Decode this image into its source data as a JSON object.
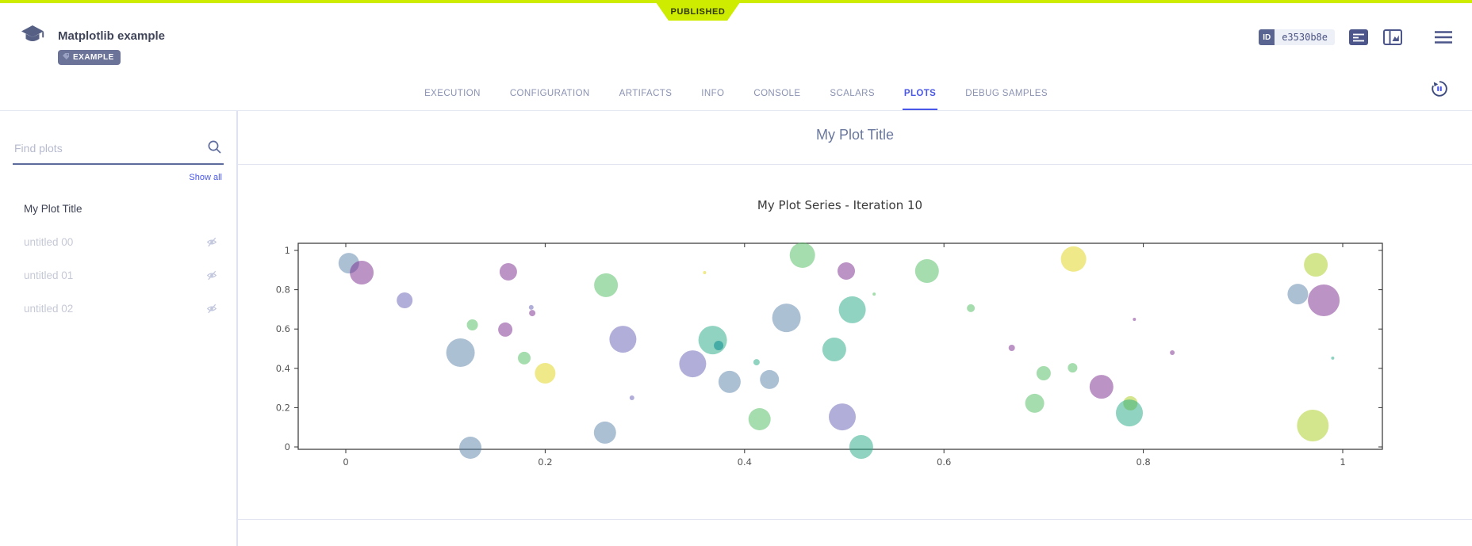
{
  "header": {
    "ribbon_label": "PUBLISHED",
    "ribbon_color": "#cdec00",
    "title": "Matplotlib example",
    "tag_label": "EXAMPLE",
    "id_label": "ID",
    "id_value": "e3530b8e",
    "icons": [
      "app-logo-icon",
      "tag-icon",
      "details-icon",
      "viewer-panel-icon",
      "menu-icon"
    ]
  },
  "tabs": {
    "items": [
      "EXECUTION",
      "CONFIGURATION",
      "ARTIFACTS",
      "INFO",
      "CONSOLE",
      "SCALARS",
      "PLOTS",
      "DEBUG SAMPLES"
    ],
    "active": "PLOTS",
    "active_color": "#4957e8",
    "refresh_icon": "auto-refresh-pause-icon"
  },
  "sidebar": {
    "search_placeholder": "Find plots",
    "search_value": "",
    "show_all": "Show all",
    "items": [
      {
        "label": "My Plot Title",
        "active": true,
        "hidden": false
      },
      {
        "label": "untitled 00",
        "active": false,
        "hidden": true
      },
      {
        "label": "untitled 01",
        "active": false,
        "hidden": true
      },
      {
        "label": "untitled 02",
        "active": false,
        "hidden": true
      }
    ]
  },
  "main": {
    "section_title": "My Plot Title"
  },
  "chart_data": {
    "type": "scatter",
    "title": "My Plot Series - Iteration 10",
    "xlabel": "",
    "ylabel": "",
    "xlim": [
      -0.05,
      1.04
    ],
    "ylim": [
      -0.02,
      1.04
    ],
    "xticks": [
      0,
      0.2,
      0.4,
      0.6,
      0.8,
      1
    ],
    "yticks": [
      0,
      0.2,
      0.4,
      0.6,
      0.8,
      1
    ],
    "grid": false,
    "legend": "none",
    "colors": {
      "blue": "rgba(90,130,170,0.5)",
      "purple": "rgba(120,40,140,0.5)",
      "lavender": "rgba(100,95,180,0.5)",
      "green": "rgba(85,190,100,0.52)",
      "teal": "rgba(40,170,135,0.52)",
      "tealdark": "rgba(30,150,150,0.65)",
      "yellow": "rgba(225,215,40,0.55)",
      "yellowgreen": "rgba(175,210,50,0.55)"
    },
    "points": [
      {
        "x": 0.003,
        "y": 0.935,
        "r": 13,
        "c": "blue"
      },
      {
        "x": 0.016,
        "y": 0.887,
        "r": 15,
        "c": "purple"
      },
      {
        "x": 0.059,
        "y": 0.746,
        "r": 10,
        "c": "lavender"
      },
      {
        "x": 0.127,
        "y": 0.621,
        "r": 7,
        "c": "green"
      },
      {
        "x": 0.163,
        "y": 0.891,
        "r": 11,
        "c": "purple"
      },
      {
        "x": 0.16,
        "y": 0.597,
        "r": 9,
        "c": "purple"
      },
      {
        "x": 0.186,
        "y": 0.71,
        "r": 3,
        "c": "lavender"
      },
      {
        "x": 0.187,
        "y": 0.681,
        "r": 4,
        "c": "purple"
      },
      {
        "x": 0.115,
        "y": 0.48,
        "r": 18,
        "c": "blue"
      },
      {
        "x": 0.179,
        "y": 0.452,
        "r": 8,
        "c": "green"
      },
      {
        "x": 0.2,
        "y": 0.375,
        "r": 13,
        "c": "yellow"
      },
      {
        "x": 0.125,
        "y": -0.004,
        "r": 14,
        "c": "blue"
      },
      {
        "x": 0.261,
        "y": 0.823,
        "r": 15,
        "c": "green"
      },
      {
        "x": 0.458,
        "y": 0.976,
        "r": 16,
        "c": "green"
      },
      {
        "x": 0.442,
        "y": 0.657,
        "r": 18,
        "c": "blue"
      },
      {
        "x": 0.278,
        "y": 0.548,
        "r": 17,
        "c": "lavender"
      },
      {
        "x": 0.368,
        "y": 0.544,
        "r": 18,
        "c": "teal"
      },
      {
        "x": 0.374,
        "y": 0.516,
        "r": 6,
        "c": "tealdark"
      },
      {
        "x": 0.348,
        "y": 0.423,
        "r": 17,
        "c": "lavender"
      },
      {
        "x": 0.412,
        "y": 0.431,
        "r": 4,
        "c": "teal"
      },
      {
        "x": 0.385,
        "y": 0.331,
        "r": 14,
        "c": "blue"
      },
      {
        "x": 0.425,
        "y": 0.343,
        "r": 12,
        "c": "blue"
      },
      {
        "x": 0.415,
        "y": 0.141,
        "r": 14,
        "c": "green"
      },
      {
        "x": 0.26,
        "y": 0.073,
        "r": 14,
        "c": "blue"
      },
      {
        "x": 0.287,
        "y": 0.25,
        "r": 3,
        "c": "lavender"
      },
      {
        "x": 0.36,
        "y": 0.887,
        "r": 2,
        "c": "yellow"
      },
      {
        "x": 0.502,
        "y": 0.895,
        "r": 11,
        "c": "purple"
      },
      {
        "x": 0.583,
        "y": 0.895,
        "r": 15,
        "c": "green"
      },
      {
        "x": 0.73,
        "y": 0.956,
        "r": 16,
        "c": "yellow"
      },
      {
        "x": 0.508,
        "y": 0.698,
        "r": 17,
        "c": "teal"
      },
      {
        "x": 0.49,
        "y": 0.496,
        "r": 15,
        "c": "teal"
      },
      {
        "x": 0.53,
        "y": 0.778,
        "r": 2,
        "c": "green"
      },
      {
        "x": 0.627,
        "y": 0.706,
        "r": 5,
        "c": "green"
      },
      {
        "x": 0.668,
        "y": 0.504,
        "r": 4,
        "c": "purple"
      },
      {
        "x": 0.7,
        "y": 0.375,
        "r": 9,
        "c": "green"
      },
      {
        "x": 0.729,
        "y": 0.403,
        "r": 6,
        "c": "green"
      },
      {
        "x": 0.758,
        "y": 0.306,
        "r": 15,
        "c": "purple"
      },
      {
        "x": 0.691,
        "y": 0.222,
        "r": 12,
        "c": "green"
      },
      {
        "x": 0.498,
        "y": 0.153,
        "r": 17,
        "c": "lavender"
      },
      {
        "x": 0.517,
        "y": 0.0,
        "r": 15,
        "c": "teal"
      },
      {
        "x": 0.973,
        "y": 0.927,
        "r": 15,
        "c": "yellowgreen"
      },
      {
        "x": 0.955,
        "y": 0.778,
        "r": 13,
        "c": "blue"
      },
      {
        "x": 0.981,
        "y": 0.746,
        "r": 20,
        "c": "purple"
      },
      {
        "x": 0.791,
        "y": 0.649,
        "r": 2,
        "c": "purple"
      },
      {
        "x": 0.829,
        "y": 0.48,
        "r": 3,
        "c": "purple"
      },
      {
        "x": 0.99,
        "y": 0.452,
        "r": 2,
        "c": "teal"
      },
      {
        "x": 0.787,
        "y": 0.222,
        "r": 9,
        "c": "yellowgreen"
      },
      {
        "x": 0.786,
        "y": 0.173,
        "r": 17,
        "c": "teal"
      },
      {
        "x": 0.97,
        "y": 0.109,
        "r": 20,
        "c": "yellowgreen"
      }
    ]
  }
}
